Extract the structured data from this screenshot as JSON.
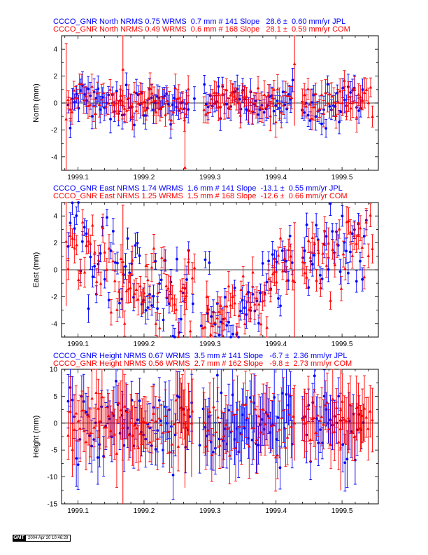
{
  "chart_data": [
    {
      "type": "scatter",
      "component": "North",
      "headers": [
        {
          "color": "#0000ff",
          "text": "CCCO_GNR North NRMS 0.75 WRMS  0.7 mm # 141 Slope   28.6 ±  0.60 mm/yr JPL"
        },
        {
          "color": "#ff0000",
          "text": "CCCO_GNR North NRMS 0.49 WRMS  0.6 mm # 168 Slope   28.1 ±  0.59 mm/yr COM"
        }
      ],
      "ylabel": "North (mm)",
      "xlim": [
        1999.075,
        1999.555
      ],
      "ylim": [
        -5,
        5
      ],
      "yticks": [
        -4,
        -2,
        0,
        2,
        4
      ],
      "xticks": [
        "1999.1",
        "1999.2",
        "1999.3",
        "1999.4",
        "1999.5"
      ],
      "series": [
        {
          "name": "JPL",
          "color": "#0000ff",
          "marker": "circle",
          "n": 141,
          "wrms": 0.7,
          "err": 0.8
        },
        {
          "name": "COM",
          "color": "#ff0000",
          "marker": "triangle",
          "n": 168,
          "wrms": 0.6,
          "err": 0.9
        }
      ],
      "outliers": [
        {
          "x": 1999.082,
          "y": -1.2,
          "err": 5.6
        },
        {
          "x": 1999.168,
          "y": 2.5,
          "err": 2.9
        },
        {
          "x": 1999.262,
          "y": -4.8,
          "err": 4.0
        },
        {
          "x": 1999.428,
          "y": 2.9,
          "err": 4.6
        }
      ]
    },
    {
      "type": "scatter",
      "component": "East",
      "headers": [
        {
          "color": "#0000ff",
          "text": "CCCO_GNR East NRMS 1.74 WRMS  1.6 mm # 141 Slope  -13.1 ±  0.55 mm/yr JPL"
        },
        {
          "color": "#ff0000",
          "text": "CCCO_GNR East NRMS 1.25 WRMS  1.5 mm # 168 Slope  -12.6 ±  0.66 mm/yr COM"
        }
      ],
      "ylabel": "East (mm)",
      "xlim": [
        1999.075,
        1999.555
      ],
      "ylim": [
        -5,
        5
      ],
      "yticks": [
        -4,
        -2,
        0,
        2,
        4
      ],
      "xticks": [
        "1999.1",
        "1999.2",
        "1999.3",
        "1999.4",
        "1999.5"
      ],
      "trend_knots": [
        [
          1999.08,
          2.2
        ],
        [
          1999.14,
          0.9
        ],
        [
          1999.2,
          -1.2
        ],
        [
          1999.28,
          -2.8
        ],
        [
          1999.33,
          -2.9
        ],
        [
          1999.38,
          -1.6
        ],
        [
          1999.43,
          0.4
        ],
        [
          1999.45,
          1.0
        ],
        [
          1999.55,
          2.2
        ]
      ],
      "series": [
        {
          "name": "JPL",
          "color": "#0000ff",
          "marker": "circle",
          "n": 141,
          "wrms": 1.6,
          "err": 0.8
        },
        {
          "name": "COM",
          "color": "#ff0000",
          "marker": "triangle",
          "n": 168,
          "wrms": 1.5,
          "err": 0.9
        }
      ],
      "outliers": [
        {
          "x": 1999.082,
          "y": 2.1,
          "err": 4.8
        },
        {
          "x": 1999.168,
          "y": 0.6,
          "err": 4.2
        },
        {
          "x": 1999.262,
          "y": -2.1,
          "err": 2.9
        },
        {
          "x": 1999.428,
          "y": -0.9,
          "err": 4.4
        }
      ]
    },
    {
      "type": "scatter",
      "component": "Height",
      "headers": [
        {
          "color": "#0000ff",
          "text": "CCCO_GNR Height NRMS 0.67 WRMS  3.5 mm # 141 Slope   -6.7 ±  2.36 mm/yr JPL"
        },
        {
          "color": "#ff0000",
          "text": "CCCO_GNR Height NRMS 0.56 WRMS  2.7 mm # 162 Slope   -9.8 ±  2.73 mm/yr COM"
        }
      ],
      "ylabel": "Height (mm)",
      "xlim": [
        1999.075,
        1999.555
      ],
      "ylim": [
        -15,
        10
      ],
      "yticks": [
        -15,
        -10,
        -5,
        0,
        5,
        10
      ],
      "xticks": [
        "1999.1",
        "1999.2",
        "1999.3",
        "1999.4",
        "1999.5"
      ],
      "series": [
        {
          "name": "JPL",
          "color": "#0000ff",
          "marker": "circle",
          "n": 141,
          "wrms": 3.5,
          "err": 4.2
        },
        {
          "name": "COM",
          "color": "#ff0000",
          "marker": "triangle",
          "n": 162,
          "wrms": 2.7,
          "err": 5.0
        }
      ],
      "outliers": [
        {
          "x": 1999.168,
          "y": 0.0,
          "err": 15.0
        },
        {
          "x": 1999.262,
          "y": 0.0,
          "err": 12.0
        },
        {
          "x": 1999.272,
          "y": 0.0,
          "err": 10.0
        },
        {
          "x": 1999.428,
          "y": 0.0,
          "err": 7.0
        },
        {
          "x": 1999.498,
          "y": 2.5,
          "err": 15.0
        }
      ]
    }
  ],
  "footer": {
    "logo": "GMT",
    "stamp": "2004 Apr 20 10:46:29"
  }
}
